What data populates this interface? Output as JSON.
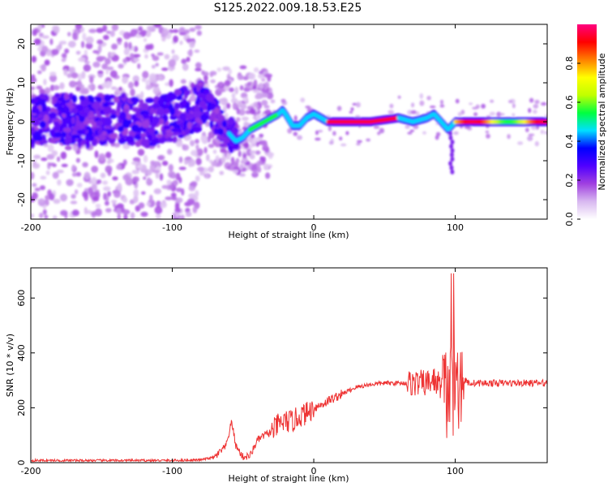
{
  "title": "S125.2022.009.18.53.E25",
  "chart_data": [
    {
      "type": "heatmap",
      "name": "spectrogram",
      "xlabel": "Height of straight line (km)",
      "ylabel": "Frequency (Hz)",
      "xlim": [
        -200,
        165
      ],
      "ylim": [
        -25,
        25
      ],
      "xticks": [
        -200,
        -100,
        0,
        100
      ],
      "yticks": [
        -20,
        -10,
        0,
        10,
        20
      ],
      "ridge": {
        "x": [
          -200,
          -180,
          -160,
          -140,
          -120,
          -100,
          -90,
          -80,
          -75,
          -70,
          -65,
          -60,
          -55,
          -50,
          -45,
          -40,
          -35,
          -30,
          -25,
          -22,
          -20,
          -15,
          -10,
          -5,
          0,
          10,
          20,
          40,
          60,
          70,
          80,
          85,
          90,
          95,
          100,
          110,
          120,
          140,
          165
        ],
        "y": [
          0,
          1,
          0,
          1,
          0,
          1,
          3,
          4,
          4,
          2,
          -2,
          -3,
          -5,
          -4,
          -2,
          -1,
          0,
          1,
          2,
          3,
          2,
          -1,
          -1,
          1,
          2,
          0,
          0,
          0,
          1,
          0,
          1,
          2,
          0,
          -2,
          0,
          0,
          0,
          0,
          0
        ]
      },
      "colorbar": {
        "label": "Normalized spectral amplitude",
        "range": [
          0.0,
          1.0
        ],
        "ticks": [
          "0.0",
          "0.2",
          "0.4",
          "0.6",
          "0.8"
        ],
        "colors": [
          "#ffffff",
          "#d8b8f0",
          "#a040e0",
          "#5000ff",
          "#0000ff",
          "#00e0ff",
          "#00ff40",
          "#c0ff00",
          "#ffff00",
          "#ff8000",
          "#ff0000",
          "#ff0080"
        ]
      }
    },
    {
      "type": "line",
      "name": "snr",
      "xlabel": "Height of straight line (km)",
      "ylabel": "SNR (10 * v/v)",
      "xlim": [
        -200,
        165
      ],
      "ylim": [
        0,
        710
      ],
      "xticks": [
        -200,
        -100,
        0,
        100
      ],
      "yticks": [
        0,
        200,
        400,
        600
      ],
      "color": "#ee3333",
      "x": [
        -200,
        -150,
        -100,
        -80,
        -70,
        -62,
        -58,
        -55,
        -50,
        -45,
        -40,
        -35,
        -30,
        -25,
        -20,
        -15,
        -10,
        -5,
        0,
        5,
        10,
        20,
        30,
        40,
        50,
        60,
        70,
        80,
        85,
        90,
        95,
        100,
        103,
        106,
        110,
        120,
        140,
        165
      ],
      "y": [
        8,
        8,
        8,
        10,
        20,
        60,
        150,
        60,
        20,
        25,
        80,
        100,
        110,
        140,
        150,
        150,
        170,
        180,
        200,
        210,
        225,
        250,
        275,
        285,
        290,
        290,
        290,
        290,
        300,
        280,
        230,
        300,
        290,
        300,
        290,
        290,
        290,
        290
      ]
    }
  ]
}
